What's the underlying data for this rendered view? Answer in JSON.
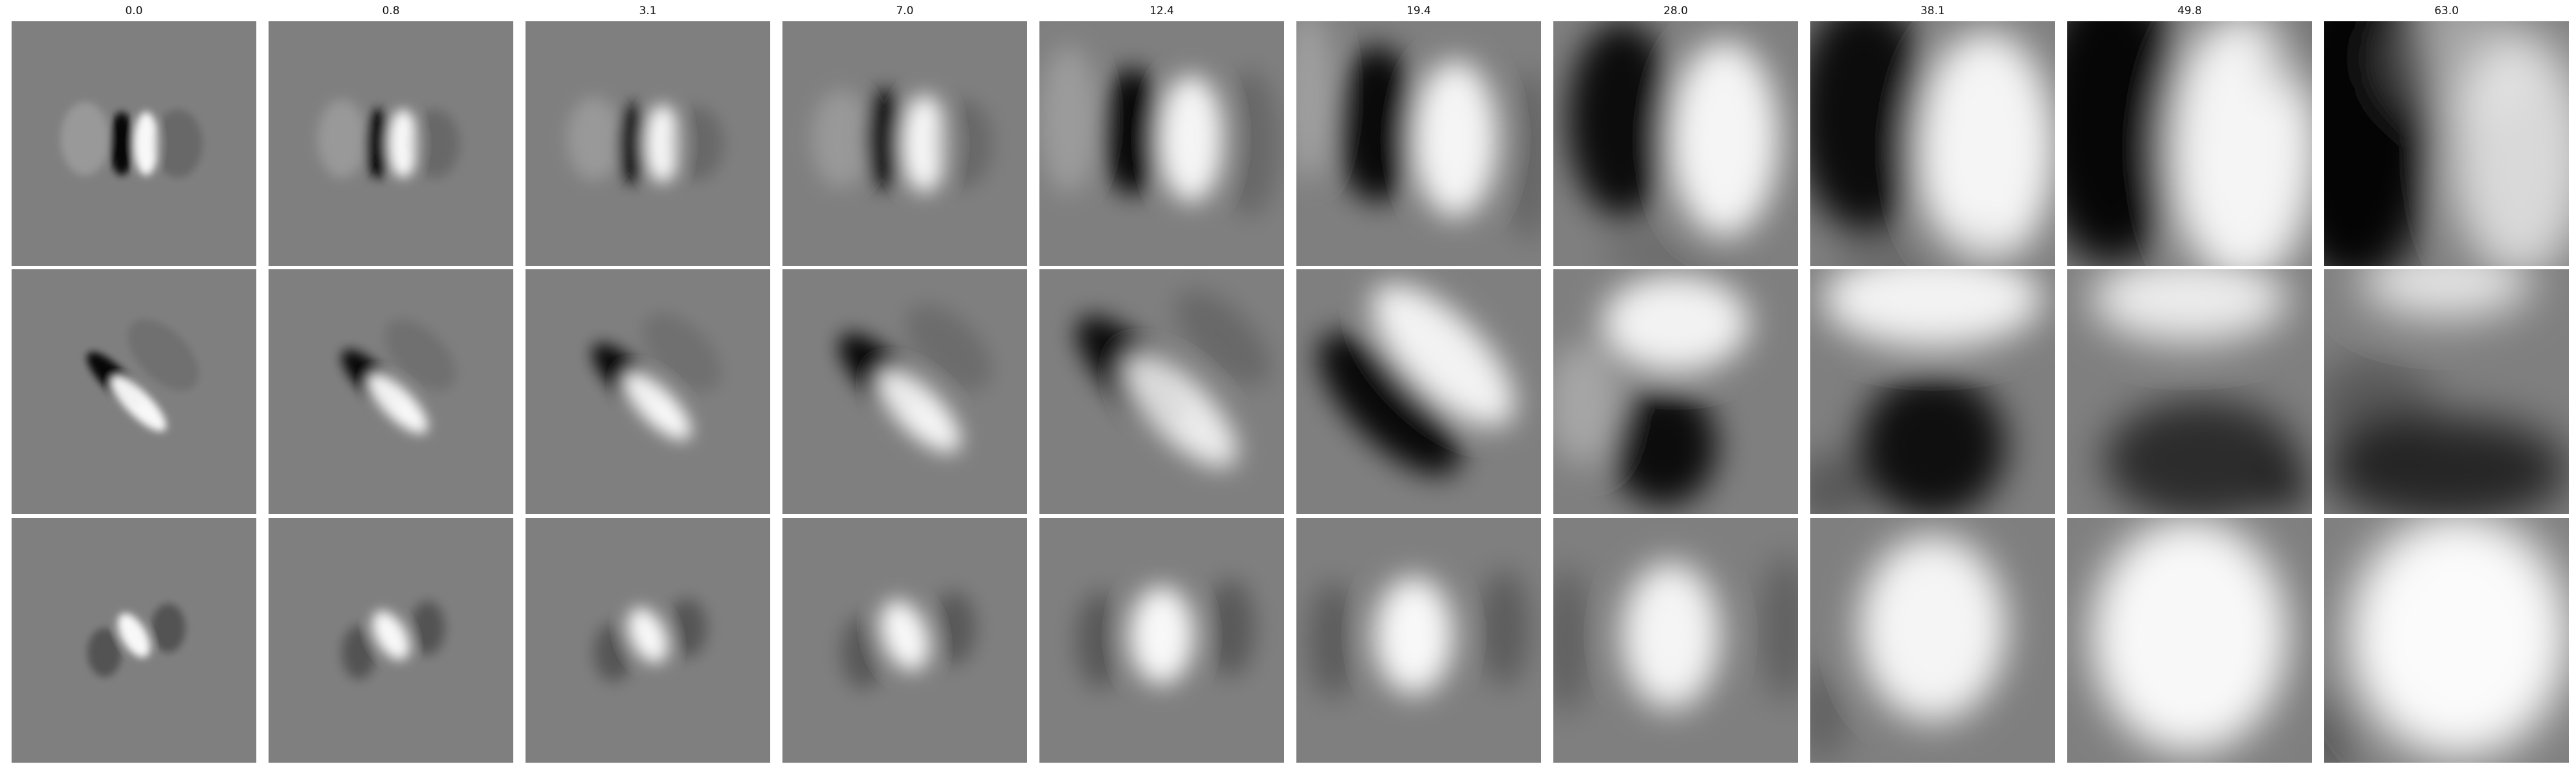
{
  "figure": {
    "column_titles": [
      "0.0",
      "0.8",
      "3.1",
      "7.0",
      "12.4",
      "19.4",
      "28.0",
      "38.1",
      "49.8",
      "63.0"
    ],
    "background_color": "#ffffff",
    "neutral_gray": "#7f7f7f",
    "rows": [
      {
        "panels": [
          {
            "title": "0.0"
          },
          {
            "title": "0.8"
          },
          {
            "title": "3.1"
          },
          {
            "title": "7.0"
          },
          {
            "title": "12.4"
          },
          {
            "title": "19.4"
          },
          {
            "title": "28.0"
          },
          {
            "title": "38.1"
          },
          {
            "title": "49.8"
          },
          {
            "title": "63.0"
          }
        ]
      },
      {
        "panels": [
          {
            "title": "0.0"
          },
          {
            "title": "0.8"
          },
          {
            "title": "3.1"
          },
          {
            "title": "7.0"
          },
          {
            "title": "12.4"
          },
          {
            "title": "19.4"
          },
          {
            "title": "28.0"
          },
          {
            "title": "38.1"
          },
          {
            "title": "49.8"
          },
          {
            "title": "63.0"
          }
        ]
      },
      {
        "panels": [
          {
            "title": "0.0"
          },
          {
            "title": "0.8"
          },
          {
            "title": "3.1"
          },
          {
            "title": "7.0"
          },
          {
            "title": "12.4"
          },
          {
            "title": "19.4"
          },
          {
            "title": "28.0"
          },
          {
            "title": "38.1"
          },
          {
            "title": "49.8"
          },
          {
            "title": "63.0"
          }
        ]
      }
    ]
  }
}
